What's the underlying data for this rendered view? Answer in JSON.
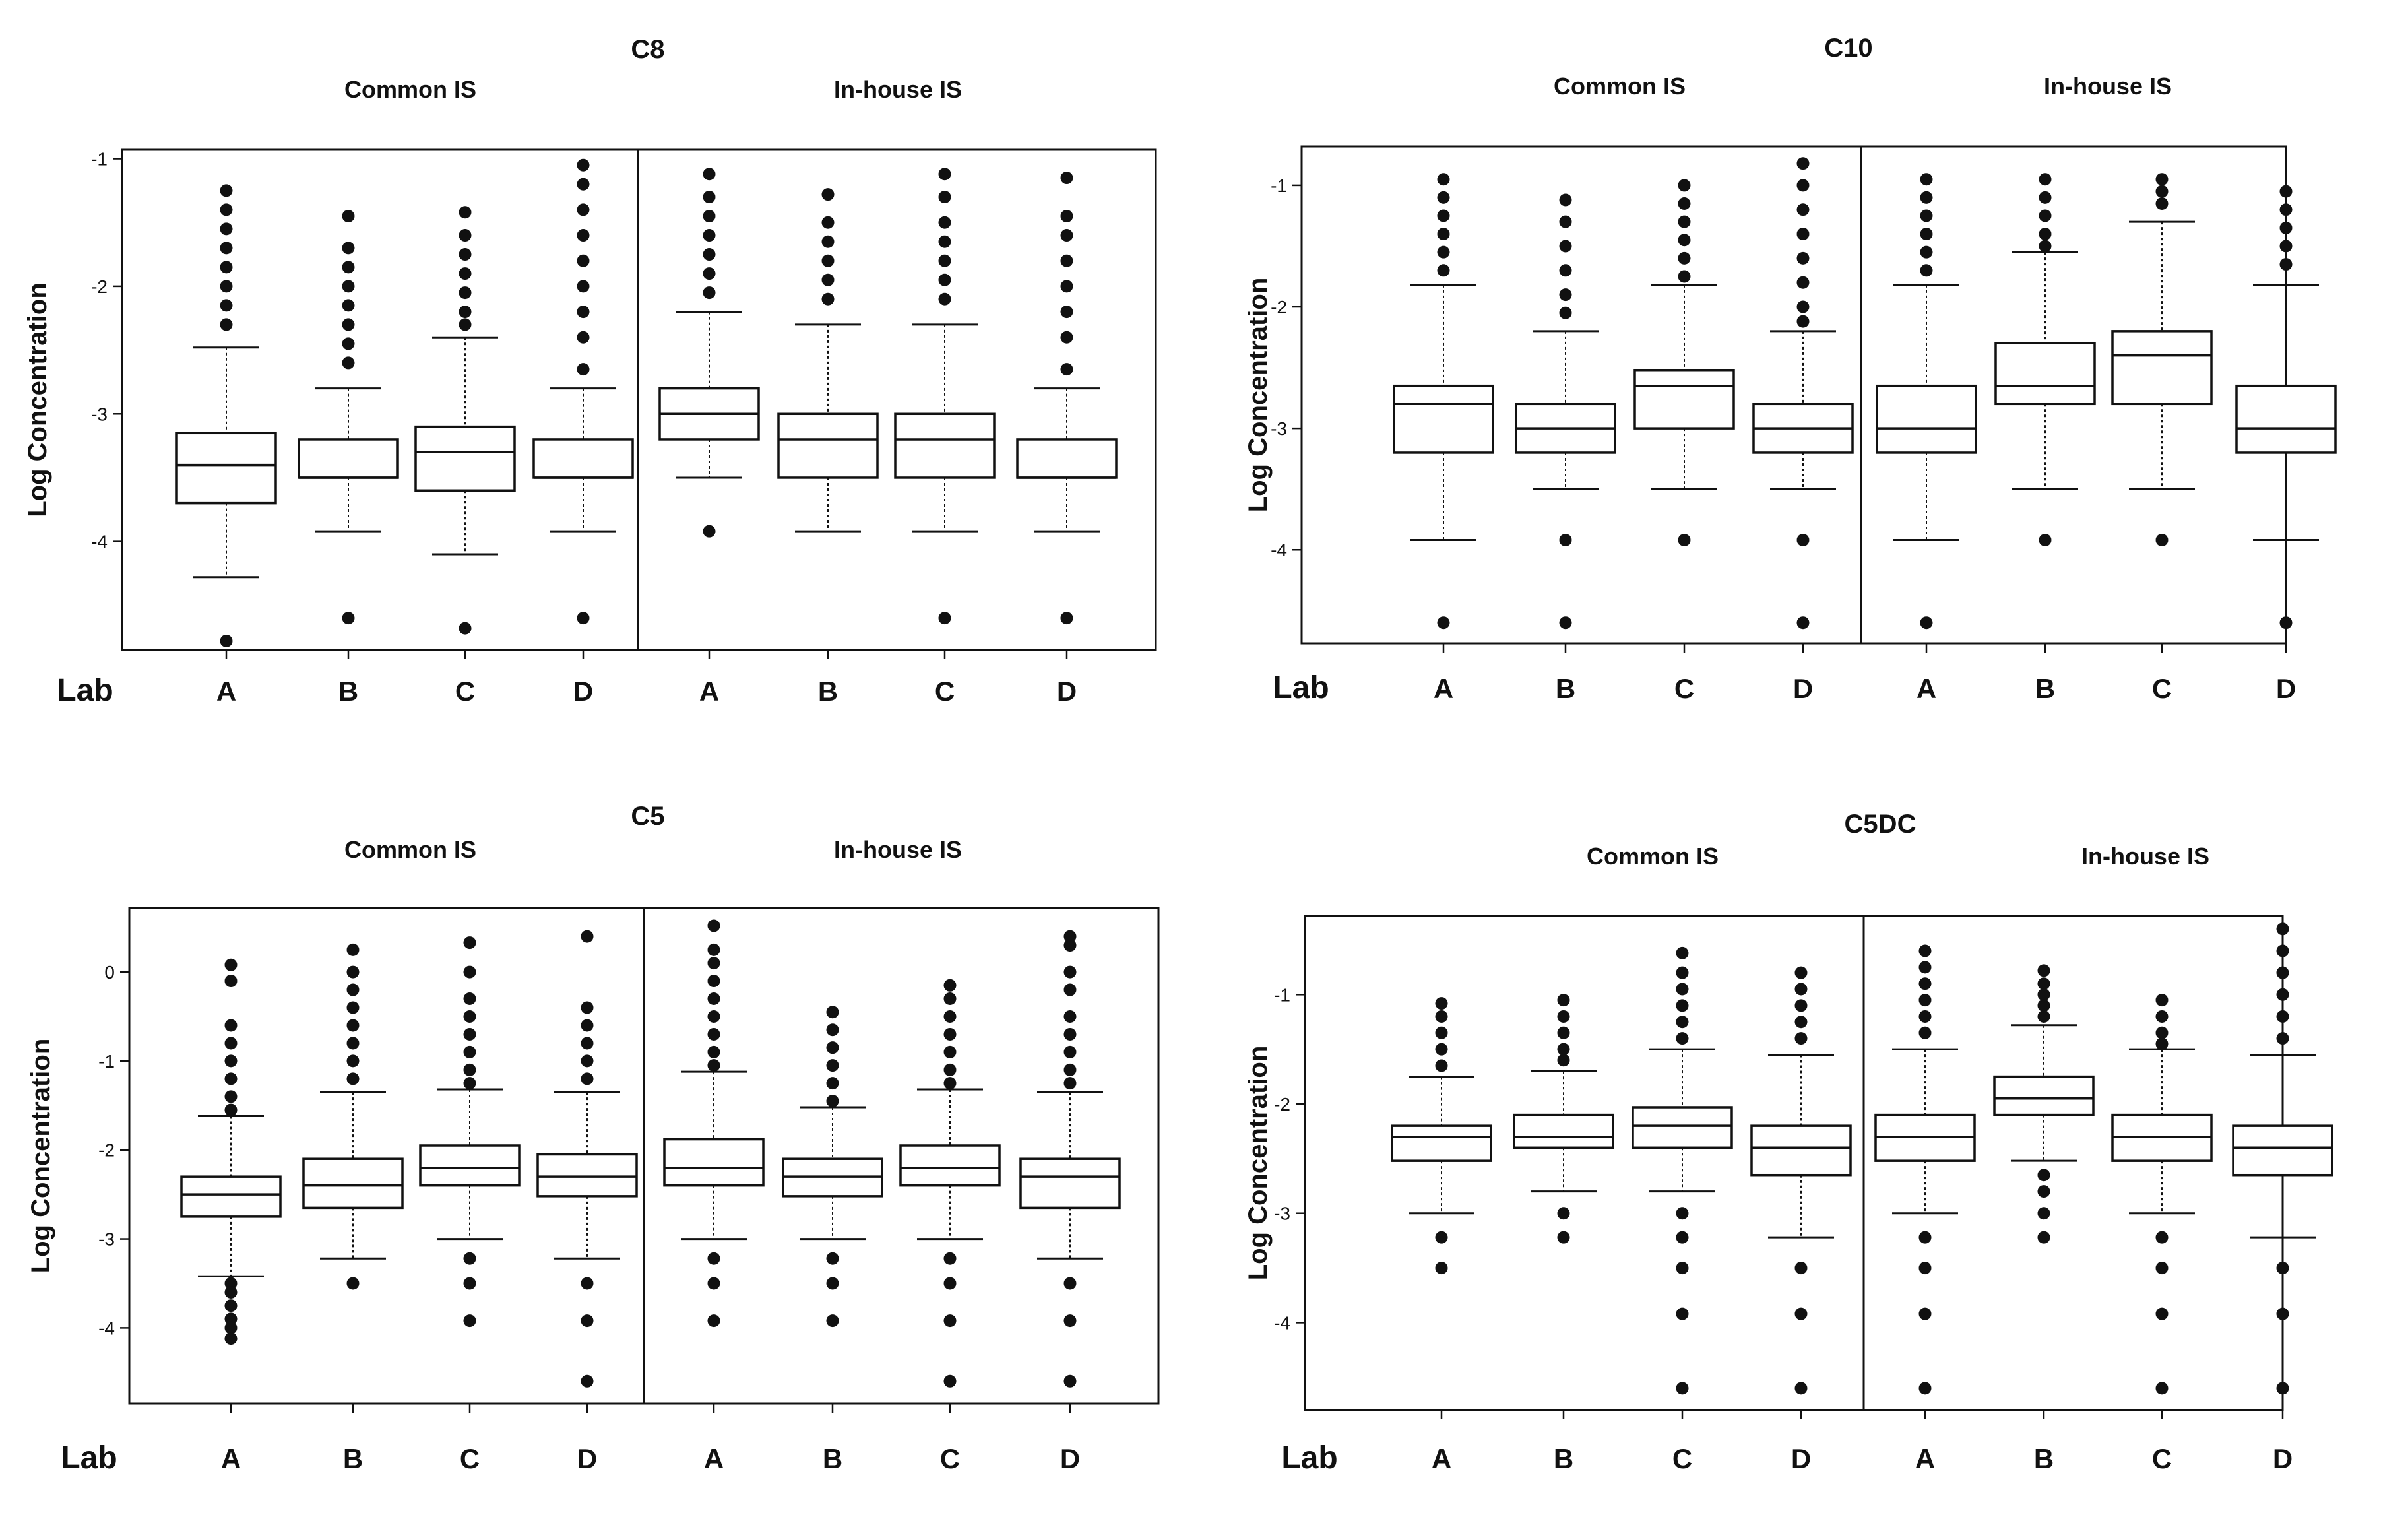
{
  "figure_labels": {
    "lab_label": "Lab",
    "common_group": "Common IS",
    "inhouse_group": "In-house IS"
  },
  "chart_data": [
    {
      "type": "boxplot",
      "title": "C8",
      "ylabel": "Log Concentration",
      "xlabel": "Lab",
      "groups": [
        "Common IS",
        "In-house IS"
      ],
      "categories": [
        "A",
        "B",
        "C",
        "D",
        "A",
        "B",
        "C",
        "D"
      ],
      "ylim": [
        -4.85,
        -0.93
      ],
      "yticks": [
        -1,
        -2,
        -3,
        -4
      ],
      "ytick_labels": [
        "-1",
        "-2",
        "-3",
        "-4"
      ],
      "boxes": [
        {
          "group": "Common IS",
          "lab": "A",
          "whisker_low": -4.28,
          "q1": -3.7,
          "median": -3.4,
          "q3": -3.15,
          "whisker_high": -2.48,
          "outliers_high": [
            -1.25,
            -1.4,
            -1.55,
            -1.7,
            -1.85,
            -2.0,
            -2.15,
            -2.3
          ],
          "outliers_low": [
            -4.78
          ]
        },
        {
          "group": "Common IS",
          "lab": "B",
          "whisker_low": -3.92,
          "q1": -3.5,
          "median": -3.5,
          "q3": -3.2,
          "whisker_high": -2.8,
          "outliers_high": [
            -1.45,
            -1.7,
            -1.85,
            -2.0,
            -2.15,
            -2.3,
            -2.45,
            -2.6
          ],
          "outliers_low": [
            -4.6
          ]
        },
        {
          "group": "Common IS",
          "lab": "C",
          "whisker_low": -4.1,
          "q1": -3.6,
          "median": -3.3,
          "q3": -3.1,
          "whisker_high": -2.4,
          "outliers_high": [
            -1.42,
            -1.6,
            -1.75,
            -1.9,
            -2.05,
            -2.2,
            -2.3
          ],
          "outliers_low": [
            -4.68
          ]
        },
        {
          "group": "Common IS",
          "lab": "D",
          "whisker_low": -3.92,
          "q1": -3.5,
          "median": -3.5,
          "q3": -3.2,
          "whisker_high": -2.8,
          "outliers_high": [
            -1.05,
            -1.2,
            -1.4,
            -1.6,
            -1.8,
            -2.0,
            -2.2,
            -2.4,
            -2.65
          ],
          "outliers_low": [
            -4.6
          ]
        },
        {
          "group": "In-house IS",
          "lab": "A",
          "whisker_low": -3.5,
          "q1": -3.2,
          "median": -3.0,
          "q3": -2.8,
          "whisker_high": -2.2,
          "outliers_high": [
            -1.12,
            -1.3,
            -1.45,
            -1.6,
            -1.75,
            -1.9,
            -2.05
          ],
          "outliers_low": [
            -3.92
          ]
        },
        {
          "group": "In-house IS",
          "lab": "B",
          "whisker_low": -3.92,
          "q1": -3.5,
          "median": -3.2,
          "q3": -3.0,
          "whisker_high": -2.3,
          "outliers_high": [
            -1.28,
            -1.5,
            -1.65,
            -1.8,
            -1.95,
            -2.1
          ],
          "outliers_low": []
        },
        {
          "group": "In-house IS",
          "lab": "C",
          "whisker_low": -3.92,
          "q1": -3.5,
          "median": -3.2,
          "q3": -3.0,
          "whisker_high": -2.3,
          "outliers_high": [
            -1.12,
            -1.3,
            -1.5,
            -1.65,
            -1.8,
            -1.95,
            -2.1
          ],
          "outliers_low": [
            -4.6
          ]
        },
        {
          "group": "In-house IS",
          "lab": "D",
          "whisker_low": -3.92,
          "q1": -3.5,
          "median": -3.5,
          "q3": -3.2,
          "whisker_high": -2.8,
          "outliers_high": [
            -1.15,
            -1.45,
            -1.6,
            -1.8,
            -2.0,
            -2.2,
            -2.4,
            -2.65
          ],
          "outliers_low": [
            -4.6
          ]
        }
      ]
    },
    {
      "type": "boxplot",
      "title": "C10",
      "ylabel": "Log Concentration",
      "xlabel": "Lab",
      "groups": [
        "Common IS",
        "In-house IS"
      ],
      "categories": [
        "A",
        "B",
        "C",
        "D",
        "A",
        "B",
        "C",
        "D"
      ],
      "ylim": [
        -4.77,
        -0.68
      ],
      "yticks": [
        -1,
        -2,
        -3,
        -4
      ],
      "ytick_labels": [
        "-1",
        "-2",
        "-3",
        "-4"
      ],
      "boxes": [
        {
          "group": "Common IS",
          "lab": "A",
          "whisker_low": -3.92,
          "q1": -3.2,
          "median": -2.8,
          "q3": -2.65,
          "whisker_high": -1.82,
          "outliers_high": [
            -0.95,
            -1.1,
            -1.25,
            -1.4,
            -1.55,
            -1.7
          ],
          "outliers_low": [
            -4.6
          ]
        },
        {
          "group": "Common IS",
          "lab": "B",
          "whisker_low": -3.5,
          "q1": -3.2,
          "median": -3.0,
          "q3": -2.8,
          "whisker_high": -2.2,
          "outliers_high": [
            -1.12,
            -1.3,
            -1.5,
            -1.7,
            -1.9,
            -2.05
          ],
          "outliers_low": [
            -3.92,
            -4.6
          ]
        },
        {
          "group": "Common IS",
          "lab": "C",
          "whisker_low": -3.5,
          "q1": -3.0,
          "median": -2.65,
          "q3": -2.52,
          "whisker_high": -1.82,
          "outliers_high": [
            -1.0,
            -1.15,
            -1.3,
            -1.45,
            -1.6,
            -1.75
          ],
          "outliers_low": [
            -3.92
          ]
        },
        {
          "group": "Common IS",
          "lab": "D",
          "whisker_low": -3.5,
          "q1": -3.2,
          "median": -3.0,
          "q3": -2.8,
          "whisker_high": -2.2,
          "outliers_high": [
            -0.82,
            -1.0,
            -1.2,
            -1.4,
            -1.6,
            -1.8,
            -2.0,
            -2.12
          ],
          "outliers_low": [
            -3.92,
            -4.6
          ]
        },
        {
          "group": "In-house IS",
          "lab": "A",
          "whisker_low": -3.92,
          "q1": -3.2,
          "median": -3.0,
          "q3": -2.65,
          "whisker_high": -1.82,
          "outliers_high": [
            -0.95,
            -1.1,
            -1.25,
            -1.4,
            -1.55,
            -1.7
          ],
          "outliers_low": [
            -4.6
          ]
        },
        {
          "group": "In-house IS",
          "lab": "B",
          "whisker_low": -3.5,
          "q1": -2.8,
          "median": -2.65,
          "q3": -2.3,
          "whisker_high": -1.55,
          "outliers_high": [
            -0.95,
            -1.1,
            -1.25,
            -1.4,
            -1.5
          ],
          "outliers_low": [
            -3.92
          ]
        },
        {
          "group": "In-house IS",
          "lab": "C",
          "whisker_low": -3.5,
          "q1": -2.8,
          "median": -2.4,
          "q3": -2.2,
          "whisker_high": -1.3,
          "outliers_high": [
            -0.95,
            -1.05,
            -1.15
          ],
          "outliers_low": [
            -3.92
          ]
        },
        {
          "group": "In-house IS",
          "lab": "D",
          "whisker_low": -3.92,
          "q1": -3.2,
          "median": -3.0,
          "q3": -2.65,
          "whisker_high": -1.82,
          "outliers_high": [
            -1.05,
            -1.2,
            -1.35,
            -1.5,
            -1.65
          ],
          "outliers_low": [
            -4.6
          ]
        }
      ]
    },
    {
      "type": "boxplot",
      "title": "C5",
      "ylabel": "Log Concentration",
      "xlabel": "Lab",
      "groups": [
        "Common IS",
        "In-house IS"
      ],
      "categories": [
        "A",
        "B",
        "C",
        "D",
        "A",
        "B",
        "C",
        "D"
      ],
      "ylim": [
        -4.85,
        0.72
      ],
      "yticks": [
        0,
        -1,
        -2,
        -3,
        -4
      ],
      "ytick_labels": [
        "0",
        "-1",
        "-2",
        "-3",
        "-4"
      ],
      "boxes": [
        {
          "group": "Common IS",
          "lab": "A",
          "whisker_low": -3.42,
          "q1": -2.75,
          "median": -2.5,
          "q3": -2.3,
          "whisker_high": -1.62,
          "outliers_high": [
            0.08,
            -0.1,
            -0.6,
            -0.8,
            -1.0,
            -1.2,
            -1.4,
            -1.55
          ],
          "outliers_low": [
            -3.5,
            -3.6,
            -3.75,
            -3.9,
            -4.0,
            -4.12
          ]
        },
        {
          "group": "Common IS",
          "lab": "B",
          "whisker_low": -3.22,
          "q1": -2.65,
          "median": -2.4,
          "q3": -2.1,
          "whisker_high": -1.35,
          "outliers_high": [
            0.25,
            0.0,
            -0.2,
            -0.4,
            -0.6,
            -0.8,
            -1.0,
            -1.2
          ],
          "outliers_low": [
            -3.5
          ]
        },
        {
          "group": "Common IS",
          "lab": "C",
          "whisker_low": -3.0,
          "q1": -2.4,
          "median": -2.2,
          "q3": -1.95,
          "whisker_high": -1.32,
          "outliers_high": [
            0.33,
            0.0,
            -0.3,
            -0.5,
            -0.7,
            -0.9,
            -1.1,
            -1.25
          ],
          "outliers_low": [
            -3.22,
            -3.5,
            -3.92
          ]
        },
        {
          "group": "Common IS",
          "lab": "D",
          "whisker_low": -3.22,
          "q1": -2.52,
          "median": -2.3,
          "q3": -2.05,
          "whisker_high": -1.35,
          "outliers_high": [
            0.4,
            -0.4,
            -0.6,
            -0.8,
            -1.0,
            -1.2
          ],
          "outliers_low": [
            -3.5,
            -3.92,
            -4.6
          ]
        },
        {
          "group": "In-house IS",
          "lab": "A",
          "whisker_low": -3.0,
          "q1": -2.4,
          "median": -2.2,
          "q3": -1.88,
          "whisker_high": -1.12,
          "outliers_high": [
            0.52,
            0.25,
            0.1,
            -0.1,
            -0.3,
            -0.5,
            -0.7,
            -0.9,
            -1.05
          ],
          "outliers_low": [
            -3.22,
            -3.5,
            -3.92
          ]
        },
        {
          "group": "In-house IS",
          "lab": "B",
          "whisker_low": -3.0,
          "q1": -2.52,
          "median": -2.3,
          "q3": -2.1,
          "whisker_high": -1.52,
          "outliers_high": [
            -0.45,
            -0.65,
            -0.85,
            -1.05,
            -1.25,
            -1.45
          ],
          "outliers_low": [
            -3.22,
            -3.5,
            -3.92
          ]
        },
        {
          "group": "In-house IS",
          "lab": "C",
          "whisker_low": -3.0,
          "q1": -2.4,
          "median": -2.2,
          "q3": -1.95,
          "whisker_high": -1.32,
          "outliers_high": [
            -0.15,
            -0.3,
            -0.5,
            -0.7,
            -0.9,
            -1.1,
            -1.25
          ],
          "outliers_low": [
            -3.22,
            -3.5,
            -3.92,
            -4.6
          ]
        },
        {
          "group": "In-house IS",
          "lab": "D",
          "whisker_low": -3.22,
          "q1": -2.65,
          "median": -2.3,
          "q3": -2.1,
          "whisker_high": -1.35,
          "outliers_high": [
            0.4,
            0.3,
            0.0,
            -0.2,
            -0.5,
            -0.7,
            -0.9,
            -1.1,
            -1.25
          ],
          "outliers_low": [
            -3.5,
            -3.92,
            -4.6
          ]
        }
      ]
    },
    {
      "type": "boxplot",
      "title": "C5DC",
      "ylabel": "Log Concentration",
      "xlabel": "Lab",
      "groups": [
        "Common IS",
        "In-house IS"
      ],
      "categories": [
        "A",
        "B",
        "C",
        "D",
        "A",
        "B",
        "C",
        "D"
      ],
      "ylim": [
        -4.8,
        -0.28
      ],
      "yticks": [
        -1,
        -2,
        -3,
        -4
      ],
      "ytick_labels": [
        "-1",
        "-2",
        "-3",
        "-4"
      ],
      "boxes": [
        {
          "group": "Common IS",
          "lab": "A",
          "whisker_low": -3.0,
          "q1": -2.52,
          "median": -2.3,
          "q3": -2.2,
          "whisker_high": -1.75,
          "outliers_high": [
            -1.08,
            -1.2,
            -1.35,
            -1.5,
            -1.65
          ],
          "outliers_low": [
            -3.22,
            -3.5
          ]
        },
        {
          "group": "Common IS",
          "lab": "B",
          "whisker_low": -2.8,
          "q1": -2.4,
          "median": -2.3,
          "q3": -2.1,
          "whisker_high": -1.7,
          "outliers_high": [
            -1.05,
            -1.2,
            -1.35,
            -1.5,
            -1.6
          ],
          "outliers_low": [
            -3.0,
            -3.22
          ]
        },
        {
          "group": "Common IS",
          "lab": "C",
          "whisker_low": -2.8,
          "q1": -2.4,
          "median": -2.2,
          "q3": -2.03,
          "whisker_high": -1.5,
          "outliers_high": [
            -0.62,
            -0.8,
            -0.95,
            -1.1,
            -1.25,
            -1.4
          ],
          "outliers_low": [
            -3.0,
            -3.22,
            -3.5,
            -3.92,
            -4.6
          ]
        },
        {
          "group": "Common IS",
          "lab": "D",
          "whisker_low": -3.22,
          "q1": -2.65,
          "median": -2.4,
          "q3": -2.2,
          "whisker_high": -1.55,
          "outliers_high": [
            -0.8,
            -0.95,
            -1.1,
            -1.25,
            -1.4
          ],
          "outliers_low": [
            -3.5,
            -3.92,
            -4.6
          ]
        },
        {
          "group": "In-house IS",
          "lab": "A",
          "whisker_low": -3.0,
          "q1": -2.52,
          "median": -2.3,
          "q3": -2.1,
          "whisker_high": -1.5,
          "outliers_high": [
            -0.6,
            -0.75,
            -0.9,
            -1.05,
            -1.2,
            -1.35
          ],
          "outliers_low": [
            -3.22,
            -3.5,
            -3.92,
            -4.6
          ]
        },
        {
          "group": "In-house IS",
          "lab": "B",
          "whisker_low": -2.52,
          "q1": -2.1,
          "median": -1.95,
          "q3": -1.75,
          "whisker_high": -1.28,
          "outliers_high": [
            -0.78,
            -0.9,
            -1.0,
            -1.1,
            -1.2
          ],
          "outliers_low": [
            -2.65,
            -2.8,
            -3.0,
            -3.22
          ]
        },
        {
          "group": "In-house IS",
          "lab": "C",
          "whisker_low": -3.0,
          "q1": -2.52,
          "median": -2.3,
          "q3": -2.1,
          "whisker_high": -1.5,
          "outliers_high": [
            -1.05,
            -1.2,
            -1.35,
            -1.45
          ],
          "outliers_low": [
            -3.22,
            -3.5,
            -3.92,
            -4.6
          ]
        },
        {
          "group": "In-house IS",
          "lab": "D",
          "whisker_low": -3.22,
          "q1": -2.65,
          "median": -2.4,
          "q3": -2.2,
          "whisker_high": -1.55,
          "outliers_high": [
            -0.4,
            -0.6,
            -0.8,
            -1.0,
            -1.2,
            -1.4
          ],
          "outliers_low": [
            -3.5,
            -3.92,
            -4.6
          ]
        }
      ]
    }
  ]
}
